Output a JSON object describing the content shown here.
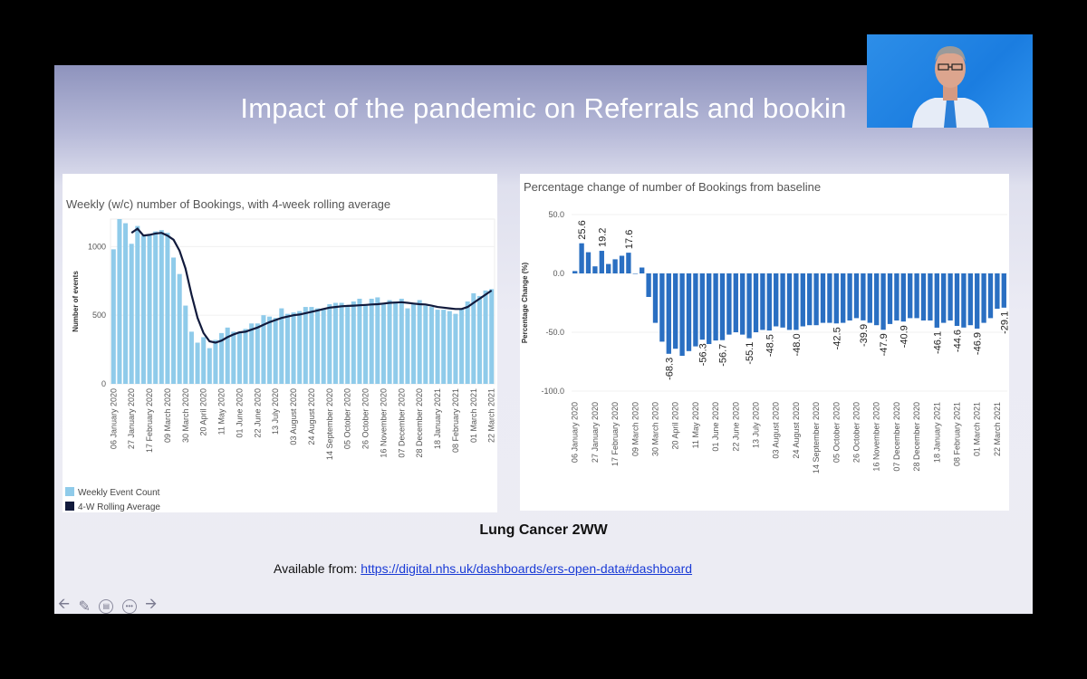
{
  "slide": {
    "title": "Impact of the pandemic on Referrals and bookin",
    "caption": "Lung Cancer 2WW",
    "source_prefix": "Available from: ",
    "source_link": "https://digital.nhs.uk/dashboards/ers-open-data#dashboard"
  },
  "nav_controls": {
    "icons": [
      "arrow-left-icon",
      "pen-icon",
      "subtitles-icon",
      "more-icon",
      "arrow-right-icon"
    ]
  },
  "webcam": {
    "description_icon": "presenter-video-icon"
  },
  "colors": {
    "bar_light": "#8fcbea",
    "line_dark": "#111a3c",
    "bar_blue": "#2a6fc2"
  },
  "chart_data": [
    {
      "type": "bar",
      "title": "Weekly (w/c) number of Bookings, with 4-week rolling average",
      "ylabel": "Number of events",
      "ylim": [
        0,
        1200
      ],
      "yticks": [
        "0",
        "500",
        "1000"
      ],
      "xtick_labels": [
        "06 January 2020",
        "27 January 2020",
        "17 February 2020",
        "09 March 2020",
        "30 March 2020",
        "20 April 2020",
        "11 May 2020",
        "01 June 2020",
        "22 June 2020",
        "13 July 2020",
        "03 August 2020",
        "24 August 2020",
        "14 September 2020",
        "05 October 2020",
        "26 October 2020",
        "16 November 2020",
        "07 December 2020",
        "28 December 2020",
        "18 January 2021",
        "08 February 2021",
        "01 March 2021",
        "22 March 2021"
      ],
      "legend": [
        "Weekly Event Count",
        "4-W Rolling Average"
      ],
      "series": [
        {
          "name": "Weekly Event Count",
          "values": [
            980,
            1200,
            1170,
            1020,
            1150,
            1080,
            1090,
            1110,
            1120,
            1100,
            920,
            800,
            570,
            380,
            300,
            340,
            260,
            320,
            370,
            410,
            380,
            380,
            400,
            440,
            440,
            500,
            490,
            480,
            550,
            510,
            520,
            530,
            560,
            560,
            550,
            550,
            580,
            590,
            590,
            560,
            600,
            620,
            570,
            620,
            630,
            580,
            610,
            600,
            620,
            550,
            580,
            610,
            570,
            560,
            540,
            540,
            530,
            510,
            550,
            600,
            660,
            640,
            680,
            690
          ]
        },
        {
          "name": "4-W Rolling Average",
          "values": [
            null,
            null,
            null,
            1100,
            1130,
            1080,
            1085,
            1095,
            1100,
            1080,
            1050,
            970,
            840,
            650,
            480,
            370,
            310,
            300,
            315,
            340,
            360,
            375,
            380,
            395,
            410,
            430,
            450,
            465,
            480,
            490,
            500,
            505,
            515,
            525,
            535,
            545,
            555,
            560,
            565,
            568,
            570,
            572,
            575,
            578,
            580,
            585,
            590,
            592,
            595,
            590,
            585,
            580,
            578,
            570,
            560,
            555,
            550,
            545,
            545,
            560,
            590,
            620,
            650,
            680
          ]
        }
      ]
    },
    {
      "type": "bar",
      "title": "Percentage change of number of Bookings from baseline",
      "ylabel": "Percentage Change (%)",
      "ylim": [
        -100,
        50
      ],
      "yticks": [
        "50.0",
        "0.0",
        "-50.0",
        "-100.0"
      ],
      "xtick_labels": [
        "06 January 2020",
        "27 January 2020",
        "17 February 2020",
        "09 March 2020",
        "30 March 2020",
        "20 April 2020",
        "11 May 2020",
        "01 June 2020",
        "22 June 2020",
        "13 July 2020",
        "03 August 2020",
        "24 August 2020",
        "14 September 2020",
        "05 October 2020",
        "26 October 2020",
        "16 November 2020",
        "07 December 2020",
        "28 December 2020",
        "18 January 2021",
        "08 February 2021",
        "01 March 2021",
        "22 March 2021"
      ],
      "values": [
        2,
        25.6,
        18,
        6,
        19.2,
        8,
        12,
        15,
        17.6,
        0,
        5,
        -20,
        -42,
        -58,
        -68.3,
        -64,
        -70,
        -66,
        -62,
        -56.3,
        -60,
        -57,
        -56.7,
        -52,
        -50,
        -52,
        -55.1,
        -50,
        -48,
        -48.5,
        -45,
        -46,
        -48,
        -48.0,
        -45,
        -44,
        -44,
        -42,
        -42,
        -42.5,
        -42,
        -40,
        -38,
        -39.9,
        -42,
        -44,
        -47.9,
        -43,
        -40,
        -40.9,
        -38,
        -38,
        -40,
        -40,
        -46.1,
        -42,
        -40,
        -44.6,
        -46,
        -44,
        -46.9,
        -42,
        -38,
        -30,
        -29.1
      ],
      "data_labels": [
        {
          "index": 1,
          "text": "25.6"
        },
        {
          "index": 4,
          "text": "19.2"
        },
        {
          "index": 8,
          "text": "17.6"
        },
        {
          "index": 14,
          "text": "-68.3"
        },
        {
          "index": 19,
          "text": "-56.3"
        },
        {
          "index": 22,
          "text": "-56.7"
        },
        {
          "index": 26,
          "text": "-55.1"
        },
        {
          "index": 29,
          "text": "-48.5"
        },
        {
          "index": 33,
          "text": "-48.0"
        },
        {
          "index": 39,
          "text": "-42.5"
        },
        {
          "index": 43,
          "text": "-39.9"
        },
        {
          "index": 46,
          "text": "-47.9"
        },
        {
          "index": 49,
          "text": "-40.9"
        },
        {
          "index": 54,
          "text": "-46.1"
        },
        {
          "index": 57,
          "text": "-44.6"
        },
        {
          "index": 60,
          "text": "-46.9"
        },
        {
          "index": 64,
          "text": "-29.1"
        }
      ]
    }
  ]
}
